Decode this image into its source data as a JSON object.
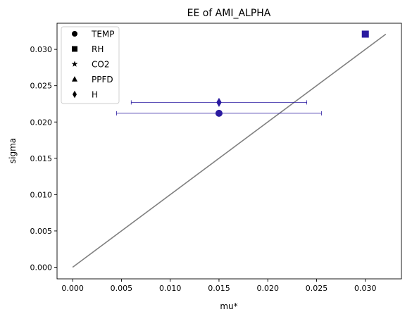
{
  "chart_data": {
    "type": "scatter",
    "title": "EE of AMI_ALPHA",
    "xlabel": "mu*",
    "ylabel": "sigma",
    "xlim": [
      -0.0016,
      0.0337
    ],
    "ylim": [
      -0.0016,
      0.0336
    ],
    "x_ticks": [
      0.0,
      0.005,
      0.01,
      0.015,
      0.02,
      0.025,
      0.03
    ],
    "x_tick_labels": [
      "0.000",
      "0.005",
      "0.010",
      "0.015",
      "0.020",
      "0.025",
      "0.030"
    ],
    "y_ticks": [
      0.0,
      0.005,
      0.01,
      0.015,
      0.02,
      0.025,
      0.03
    ],
    "y_tick_labels": [
      "0.000",
      "0.005",
      "0.010",
      "0.015",
      "0.020",
      "0.025",
      "0.030"
    ],
    "grid": false,
    "legend_position": "top-left",
    "marker_color": "#2a1aa0",
    "line_color": "#808080",
    "reference_line": {
      "x": [
        0.0,
        0.0321
      ],
      "y": [
        0.0,
        0.0321
      ]
    },
    "series": [
      {
        "name": "TEMP",
        "marker": "circle",
        "x": 0.015,
        "y": 0.0212,
        "xerr": [
          0.0045,
          0.0255
        ]
      },
      {
        "name": "RH",
        "marker": "square",
        "x": 0.03,
        "y": 0.0321,
        "xerr": null
      },
      {
        "name": "CO2",
        "marker": "star",
        "x": null,
        "y": null,
        "xerr": null
      },
      {
        "name": "PPFD",
        "marker": "triangle",
        "x": null,
        "y": null,
        "xerr": null
      },
      {
        "name": "H",
        "marker": "diamond",
        "x": 0.015,
        "y": 0.0227,
        "xerr": [
          0.006,
          0.024
        ]
      }
    ]
  }
}
